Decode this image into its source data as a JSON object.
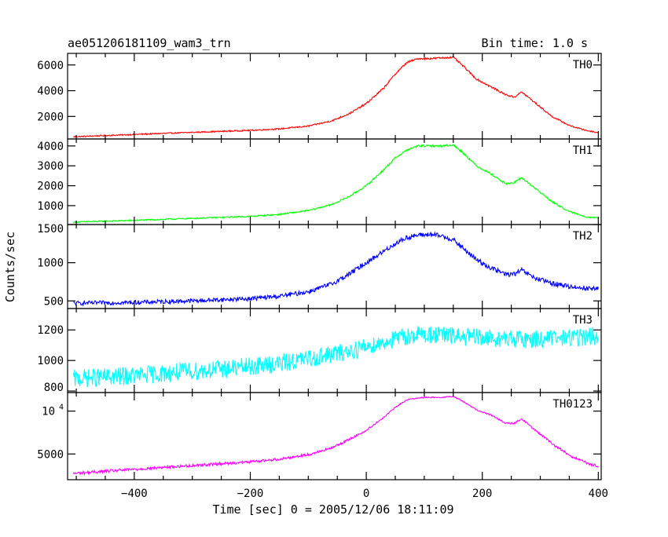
{
  "header": {
    "title": "ae051206181109_wam3_trn",
    "bin_time": "Bin time: 1.0 s"
  },
  "xlabel": "Time [sec] 0 = 2005/12/06 18:11:09",
  "ylabel": "Counts/sec",
  "chart_data": {
    "type": "line",
    "xlim": [
      -515,
      405
    ],
    "x_ticks": [
      -400,
      -200,
      0,
      200,
      400
    ],
    "x_tick_labels": [
      "−400",
      "−200",
      "0",
      "200",
      "400"
    ],
    "panels": [
      {
        "name": "TH0",
        "color": "#ff0000",
        "ylim": [
          250,
          6900
        ],
        "ticks": [
          2000,
          4000,
          6000
        ],
        "tick_labels": [
          "2000",
          "4000",
          "6000"
        ],
        "noise": 70,
        "points": [
          [
            -505,
            420
          ],
          [
            -400,
            600
          ],
          [
            -300,
            760
          ],
          [
            -200,
            920
          ],
          [
            -150,
            1030
          ],
          [
            -100,
            1250
          ],
          [
            -60,
            1650
          ],
          [
            -30,
            2200
          ],
          [
            0,
            3000
          ],
          [
            30,
            4200
          ],
          [
            50,
            5300
          ],
          [
            70,
            6200
          ],
          [
            90,
            6500
          ],
          [
            110,
            6500
          ],
          [
            130,
            6550
          ],
          [
            150,
            6600
          ],
          [
            165,
            6000
          ],
          [
            190,
            4900
          ],
          [
            215,
            4300
          ],
          [
            240,
            3700
          ],
          [
            255,
            3500
          ],
          [
            268,
            3900
          ],
          [
            290,
            3100
          ],
          [
            320,
            2000
          ],
          [
            350,
            1300
          ],
          [
            380,
            900
          ],
          [
            400,
            750
          ]
        ]
      },
      {
        "name": "TH1",
        "color": "#00ff00",
        "ylim": [
          50,
          4350
        ],
        "ticks": [
          1000,
          2000,
          3000,
          4000
        ],
        "tick_labels": [
          "1000",
          "2000",
          "3000",
          "4000"
        ],
        "noise": 50,
        "points": [
          [
            -505,
            170
          ],
          [
            -400,
            260
          ],
          [
            -300,
            360
          ],
          [
            -200,
            460
          ],
          [
            -150,
            560
          ],
          [
            -100,
            750
          ],
          [
            -60,
            1050
          ],
          [
            -30,
            1450
          ],
          [
            0,
            2000
          ],
          [
            30,
            2800
          ],
          [
            50,
            3400
          ],
          [
            70,
            3800
          ],
          [
            90,
            4000
          ],
          [
            110,
            4000
          ],
          [
            130,
            4000
          ],
          [
            150,
            4050
          ],
          [
            165,
            3700
          ],
          [
            190,
            3000
          ],
          [
            215,
            2600
          ],
          [
            240,
            2100
          ],
          [
            255,
            2150
          ],
          [
            268,
            2400
          ],
          [
            290,
            1900
          ],
          [
            320,
            1200
          ],
          [
            350,
            700
          ],
          [
            380,
            430
          ],
          [
            400,
            380
          ]
        ]
      },
      {
        "name": "TH2",
        "color": "#0000ff",
        "ylim": [
          400,
          1500
        ],
        "ticks": [
          500,
          1000,
          1500
        ],
        "tick_labels": [
          "500",
          "1000",
          "1500"
        ],
        "noise": 32,
        "points": [
          [
            -505,
            470
          ],
          [
            -400,
            480
          ],
          [
            -300,
            500
          ],
          [
            -200,
            530
          ],
          [
            -150,
            560
          ],
          [
            -100,
            620
          ],
          [
            -60,
            720
          ],
          [
            -30,
            850
          ],
          [
            0,
            1000
          ],
          [
            30,
            1150
          ],
          [
            50,
            1250
          ],
          [
            70,
            1330
          ],
          [
            90,
            1360
          ],
          [
            110,
            1370
          ],
          [
            130,
            1350
          ],
          [
            150,
            1300
          ],
          [
            165,
            1200
          ],
          [
            190,
            1040
          ],
          [
            215,
            930
          ],
          [
            240,
            850
          ],
          [
            255,
            850
          ],
          [
            268,
            900
          ],
          [
            290,
            800
          ],
          [
            320,
            730
          ],
          [
            350,
            690
          ],
          [
            380,
            665
          ],
          [
            400,
            660
          ]
        ]
      },
      {
        "name": "TH3",
        "color": "#00ffff",
        "ylim": [
          790,
          1340
        ],
        "ticks": [
          800,
          1000,
          1200
        ],
        "tick_labels": [
          "800",
          "1000",
          "1200"
        ],
        "noise": 60,
        "points": [
          [
            -505,
            880
          ],
          [
            -400,
            900
          ],
          [
            -300,
            930
          ],
          [
            -200,
            960
          ],
          [
            -150,
            980
          ],
          [
            -100,
            1010
          ],
          [
            -60,
            1040
          ],
          [
            -30,
            1060
          ],
          [
            0,
            1090
          ],
          [
            30,
            1120
          ],
          [
            50,
            1140
          ],
          [
            70,
            1160
          ],
          [
            90,
            1170
          ],
          [
            110,
            1170
          ],
          [
            130,
            1165
          ],
          [
            150,
            1160
          ],
          [
            190,
            1150
          ],
          [
            240,
            1140
          ],
          [
            290,
            1140
          ],
          [
            350,
            1150
          ],
          [
            400,
            1160
          ]
        ]
      },
      {
        "name": "TH0123",
        "color": "#ff00ff",
        "ylim": [
          3300,
          13500
        ],
        "ticks": [
          5000,
          10000
        ],
        "tick_labels": [
          "5000",
          "10^4"
        ],
        "log": true,
        "noise": 110,
        "points": [
          [
            -505,
            3650
          ],
          [
            -400,
            3900
          ],
          [
            -300,
            4150
          ],
          [
            -200,
            4400
          ],
          [
            -150,
            4600
          ],
          [
            -100,
            4950
          ],
          [
            -60,
            5500
          ],
          [
            -30,
            6300
          ],
          [
            0,
            7300
          ],
          [
            30,
            9000
          ],
          [
            50,
            10600
          ],
          [
            70,
            12000
          ],
          [
            90,
            12400
          ],
          [
            110,
            12500
          ],
          [
            130,
            12500
          ],
          [
            150,
            12700
          ],
          [
            165,
            11800
          ],
          [
            190,
            10200
          ],
          [
            215,
            9400
          ],
          [
            240,
            8200
          ],
          [
            255,
            8200
          ],
          [
            268,
            8800
          ],
          [
            290,
            7400
          ],
          [
            320,
            5900
          ],
          [
            350,
            4900
          ],
          [
            380,
            4300
          ],
          [
            400,
            4100
          ]
        ]
      }
    ]
  }
}
